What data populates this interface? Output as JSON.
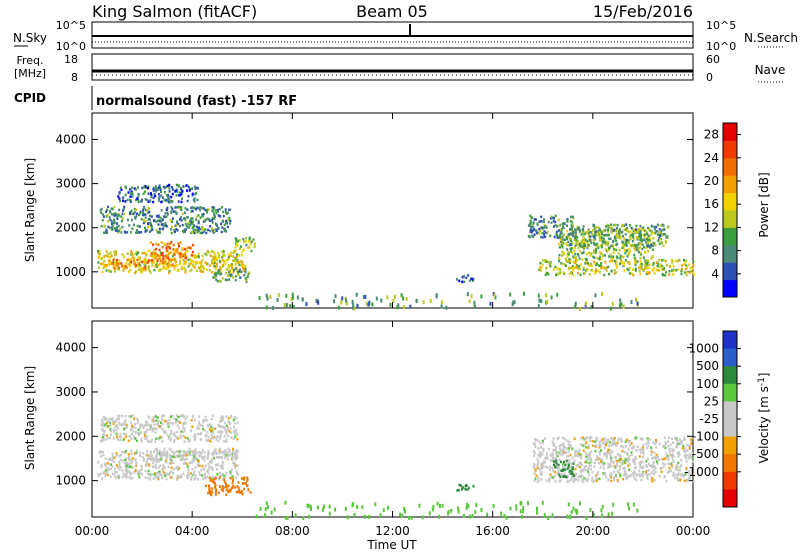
{
  "header": {
    "station": "King Salmon (fitACF)",
    "beam": "Beam 05",
    "date": "15/Feb/2016"
  },
  "noise_panel": {
    "left_label": "N.Sky",
    "right_label": "N.Search",
    "left_ticks": [
      "10^5",
      "10^0"
    ],
    "right_ticks": [
      "10^5",
      "10^0"
    ]
  },
  "freq_panel": {
    "left_label_1": "Freq.",
    "left_label_2": "[MHz]",
    "right_label": "Nave",
    "left_ticks": [
      "18",
      "8"
    ],
    "right_ticks": [
      "60",
      "0"
    ]
  },
  "cpid_panel": {
    "label": "CPID",
    "text": "normalsound (fast) -157 RF"
  },
  "colors": {
    "power_scale": [
      "#0000ff",
      "#2d50b4",
      "#4a8a78",
      "#3c9e3c",
      "#bcc81e",
      "#f0d200",
      "#f0a000",
      "#f06e00",
      "#f03c00",
      "#e60000"
    ],
    "velocity_scale": [
      "#1e32c8",
      "#2a5ec8",
      "#2d8a3c",
      "#5ac83c",
      "#c8c8c8",
      "#c8c8c8",
      "#f0a000",
      "#f07800",
      "#f03c00",
      "#e60000"
    ]
  },
  "chart_data": [
    {
      "type": "heatmap",
      "name": "power",
      "ylabel": "Slant Range [km]",
      "y_ticks": [
        1000,
        2000,
        3000,
        4000
      ],
      "ylim": [
        180,
        4600
      ],
      "xlim": [
        0,
        24
      ],
      "colorbar_label": "Power [dB]",
      "colorbar_ticks": [
        4,
        8,
        12,
        16,
        20,
        24,
        28
      ],
      "colorbar_range": [
        0,
        30
      ],
      "patches": [
        {
          "t0": 0.2,
          "t1": 6.1,
          "r0": 1000,
          "r1": 1500,
          "value": 16
        },
        {
          "t0": 0.4,
          "t1": 3.4,
          "r0": 1100,
          "r1": 1300,
          "value": 20
        },
        {
          "t0": 2.3,
          "t1": 4.0,
          "r0": 1300,
          "r1": 1700,
          "value": 22
        },
        {
          "t0": 0.3,
          "t1": 5.5,
          "r0": 1900,
          "r1": 2500,
          "value": 8
        },
        {
          "t0": 1.0,
          "t1": 4.2,
          "r0": 2600,
          "r1": 3000,
          "value": 6
        },
        {
          "t0": 4.8,
          "t1": 6.3,
          "r0": 800,
          "r1": 1100,
          "value": 10
        },
        {
          "t0": 5.6,
          "t1": 6.5,
          "r0": 1500,
          "r1": 1800,
          "value": 12
        },
        {
          "t0": 14.4,
          "t1": 15.2,
          "r0": 800,
          "r1": 950,
          "value": 6
        },
        {
          "t0": 17.8,
          "t1": 24.0,
          "r0": 950,
          "r1": 1300,
          "value": 14
        },
        {
          "t0": 18.6,
          "t1": 22.4,
          "r0": 1300,
          "r1": 2000,
          "value": 12
        },
        {
          "t0": 17.4,
          "t1": 19.2,
          "r0": 1800,
          "r1": 2300,
          "value": 8
        },
        {
          "t0": 19.0,
          "t1": 23.0,
          "r0": 1600,
          "r1": 2100,
          "value": 10
        },
        {
          "t0": 6.5,
          "t1": 22.0,
          "r0": 200,
          "r1": 550,
          "value": 10
        }
      ]
    },
    {
      "type": "heatmap",
      "name": "velocity",
      "ylabel": "Slant Range [km]",
      "y_ticks": [
        1000,
        2000,
        3000,
        4000
      ],
      "ylim": [
        180,
        4600
      ],
      "xlim": [
        0,
        24
      ],
      "colorbar_label": "Velocity [m s^-1]",
      "colorbar_ticks": [
        "1000",
        "500",
        "100",
        "25",
        "-25",
        "-100",
        "-500",
        "-1000"
      ],
      "patches": [
        {
          "t0": 0.2,
          "t1": 5.8,
          "r0": 1050,
          "r1": 1700,
          "value": 0
        },
        {
          "t0": 2.5,
          "t1": 5.8,
          "r0": 1500,
          "r1": 1750,
          "value": 0
        },
        {
          "t0": 0.3,
          "t1": 5.8,
          "r0": 1900,
          "r1": 2500,
          "value": 0
        },
        {
          "t0": 4.5,
          "t1": 6.3,
          "r0": 700,
          "r1": 1100,
          "value": -300
        },
        {
          "t0": 14.4,
          "t1": 15.2,
          "r0": 800,
          "r1": 950,
          "value": 200
        },
        {
          "t0": 17.6,
          "t1": 24.0,
          "r0": 1000,
          "r1": 2000,
          "value": 0
        },
        {
          "t0": 18.4,
          "t1": 19.2,
          "r0": 1100,
          "r1": 1500,
          "value": 200
        },
        {
          "t0": 6.5,
          "t1": 22.0,
          "r0": 200,
          "r1": 550,
          "value": 60
        }
      ]
    }
  ],
  "x_axis": {
    "ticks": [
      "00:00",
      "04:00",
      "08:00",
      "12:00",
      "16:00",
      "20:00",
      "00:00"
    ],
    "label": "Time UT"
  }
}
